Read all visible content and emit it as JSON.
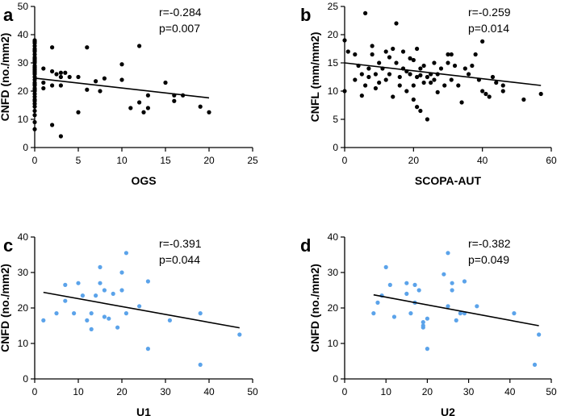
{
  "chart_data": [
    {
      "panel": "a",
      "type": "scatter",
      "xlabel": "OGS",
      "ylabel": "CNFD (no./mm2)",
      "xlim": [
        0,
        25
      ],
      "ylim": [
        0,
        50
      ],
      "xticks": [
        0,
        5,
        10,
        15,
        20,
        25
      ],
      "yticks": [
        0,
        10,
        20,
        30,
        40,
        50
      ],
      "annotation": [
        "r=-0.284",
        "p=0.007"
      ],
      "point_color": "#000000",
      "x": [
        0,
        0,
        0,
        0,
        0,
        0,
        0,
        0,
        0,
        0,
        0,
        0,
        0,
        0,
        0,
        0,
        0,
        0,
        0,
        0,
        0,
        0,
        0,
        0,
        0,
        0,
        0,
        0,
        0,
        0,
        0,
        0,
        0,
        0,
        0,
        0,
        0,
        0,
        1,
        1,
        1,
        2,
        2,
        2,
        2,
        2.5,
        3,
        3,
        3,
        3,
        3.5,
        4,
        5,
        5,
        6,
        6,
        7,
        7.5,
        8,
        10,
        10,
        11,
        12,
        12,
        12.5,
        13,
        13,
        15,
        16,
        16,
        17,
        19,
        20
      ],
      "y": [
        6.5,
        9,
        11.5,
        13,
        14.5,
        15.5,
        16.5,
        17,
        18,
        19,
        20,
        20.5,
        21,
        22,
        22.5,
        23,
        24,
        25,
        26,
        26.5,
        27,
        27.5,
        28,
        28.5,
        29,
        30,
        30.5,
        31,
        31.5,
        32,
        33,
        34,
        34.5,
        35,
        36,
        37,
        37.5,
        38,
        28,
        23,
        21,
        8,
        22,
        27,
        35.5,
        26,
        4,
        22,
        25,
        26.5,
        26.5,
        25,
        12.5,
        25,
        35.5,
        20.5,
        23.5,
        20,
        24.5,
        24,
        29.5,
        14,
        16,
        36,
        12.5,
        18.5,
        14,
        23,
        18.5,
        16.5,
        18.5,
        14.5,
        12.5
      ],
      "fit": {
        "x": [
          0,
          20
        ],
        "y": [
          24.6,
          17.6
        ]
      }
    },
    {
      "panel": "b",
      "type": "scatter",
      "xlabel": "SCOPA-AUT",
      "ylabel": "CNFL (mm/mm2)",
      "xlim": [
        0,
        60
      ],
      "ylim": [
        0,
        25
      ],
      "xticks": [
        0,
        20,
        40,
        60
      ],
      "yticks": [
        0,
        5,
        10,
        15,
        20,
        25
      ],
      "annotation": [
        "r=-0.259",
        "p=0.014"
      ],
      "point_color": "#000000",
      "x": [
        0,
        0,
        1,
        3,
        3,
        4,
        5,
        5,
        6,
        6,
        7,
        7,
        8,
        8,
        9,
        9,
        10,
        10,
        11,
        12,
        12,
        13,
        13,
        14,
        14,
        15,
        15,
        16,
        16,
        17,
        17,
        18,
        18,
        19,
        19,
        20,
        20,
        20,
        21,
        21,
        21,
        22,
        22,
        22,
        23,
        23,
        24,
        24,
        25,
        25,
        26,
        26,
        27,
        27,
        28,
        29,
        30,
        30,
        31,
        31,
        32,
        33,
        34,
        35,
        36,
        37,
        38,
        39,
        40,
        40,
        41,
        42,
        43,
        44,
        46,
        46,
        52,
        57
      ],
      "y": [
        10,
        19,
        17,
        12,
        16.5,
        14.5,
        9.2,
        13,
        11,
        23.8,
        14,
        12.5,
        18,
        16.5,
        10.5,
        13,
        15,
        11.5,
        14,
        12,
        17,
        16,
        13,
        9,
        17.5,
        22,
        15,
        12.5,
        11,
        17,
        14,
        13.5,
        10,
        15.8,
        13,
        11,
        8.5,
        15.5,
        12.5,
        7.2,
        17.5,
        14,
        6.5,
        12.8,
        11.5,
        14.5,
        5,
        12.5,
        13,
        11.5,
        15,
        12,
        9.8,
        13,
        14,
        11,
        15,
        16.5,
        12,
        16.5,
        14.5,
        11,
        8,
        14,
        13,
        14.5,
        16.5,
        12,
        10,
        18.8,
        9.5,
        9,
        12.5,
        11.5,
        11,
        10,
        8.5,
        9.5
      ],
      "fit": {
        "x": [
          0,
          57
        ],
        "y": [
          15.0,
          11.0
        ]
      }
    },
    {
      "panel": "c",
      "type": "scatter",
      "xlabel": "U1",
      "ylabel": "CNFD (no./mm2)",
      "xlim": [
        0,
        50
      ],
      "ylim": [
        0,
        40
      ],
      "xticks": [
        0,
        10,
        20,
        30,
        40,
        50
      ],
      "yticks": [
        0,
        10,
        20,
        30,
        40
      ],
      "annotation": [
        "r=-0.391",
        "p=0.044"
      ],
      "point_color": "#5ba3ea",
      "x": [
        2,
        5,
        7,
        7,
        9,
        10,
        11,
        12,
        13,
        13,
        14,
        15,
        15,
        16,
        16,
        17,
        18,
        19,
        20,
        20,
        21,
        21,
        24,
        26,
        26,
        31,
        38,
        38,
        47
      ],
      "y": [
        16.5,
        18.5,
        26.5,
        22,
        18.5,
        27,
        23.5,
        16.5,
        18.5,
        14,
        23.5,
        31.5,
        27,
        17.5,
        25,
        17,
        24,
        14.5,
        30,
        25,
        35.5,
        18.5,
        20.5,
        27.5,
        8.5,
        16.5,
        18.5,
        4,
        12.5
      ],
      "fit": {
        "x": [
          2,
          47
        ],
        "y": [
          24.4,
          14.4
        ]
      }
    },
    {
      "panel": "d",
      "type": "scatter",
      "xlabel": "U2",
      "ylabel": "CNFD (no./mm2)",
      "xlim": [
        0,
        50
      ],
      "ylim": [
        0,
        40
      ],
      "xticks": [
        0,
        10,
        20,
        30,
        40,
        50
      ],
      "yticks": [
        0,
        10,
        20,
        30,
        40
      ],
      "annotation": [
        "r=-0.382",
        "p=0.049"
      ],
      "point_color": "#5ba3ea",
      "x": [
        7,
        8,
        9,
        10,
        11,
        12,
        15,
        15,
        16,
        17,
        17,
        18,
        19,
        19,
        19,
        20,
        20,
        24,
        25,
        25,
        26,
        26,
        27,
        28,
        29,
        29,
        32,
        41,
        46,
        47
      ],
      "y": [
        18.5,
        21.5,
        23.5,
        31.5,
        26.5,
        17.5,
        27,
        24,
        18.5,
        26.5,
        21.5,
        25,
        15,
        14.5,
        16,
        17,
        8.5,
        29.5,
        35.5,
        20.5,
        27,
        25,
        16.5,
        18.5,
        27.5,
        18.5,
        20.5,
        18.5,
        4,
        12.5
      ],
      "fit": {
        "x": [
          7,
          47
        ],
        "y": [
          23.7,
          15.0
        ]
      }
    }
  ]
}
